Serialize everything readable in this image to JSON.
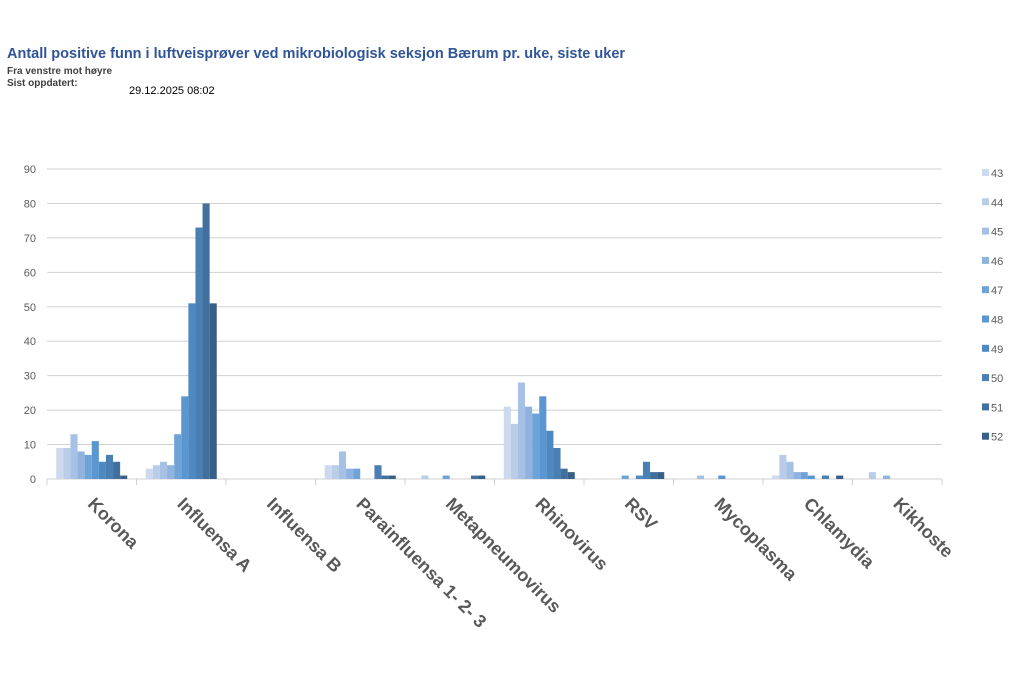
{
  "header": {
    "title": "Antall positive funn i luftveisprøver ved mikrobiologisk seksjon Bærum pr. uke, siste uker",
    "subtitle": "Fra venstre mot høyre",
    "updated_label": "Sist oppdatert:",
    "updated_value": "29.12.2025 08:02"
  },
  "chart_data": {
    "type": "bar",
    "title": "Antall positive funn i luftveisprøver ved mikrobiologisk seksjon Bærum pr. uke, siste uker",
    "xlabel": "",
    "ylabel": "",
    "ylim": [
      0,
      90
    ],
    "yticks": [
      "0",
      "10",
      "20",
      "30",
      "40",
      "50",
      "60",
      "70",
      "80",
      "90"
    ],
    "grid": true,
    "legend": "right",
    "categories": [
      "Korona",
      "Influensa A",
      "Influensa B",
      "Parainfluensa 1- 2- 3",
      "Metapneumovirus",
      "Rhinovirus",
      "RSV",
      "Mycoplasma",
      "Chlamydia",
      "Kikhoste"
    ],
    "series": [
      {
        "name": "43",
        "color": "#cdd9ec",
        "values": [
          9,
          3,
          0,
          4,
          0,
          21,
          0,
          0,
          1,
          0
        ]
      },
      {
        "name": "44",
        "color": "#b9cde9",
        "values": [
          9,
          4,
          0,
          4,
          1,
          16,
          0,
          0,
          7,
          2
        ]
      },
      {
        "name": "45",
        "color": "#a6c1e4",
        "values": [
          13,
          5,
          0,
          8,
          0,
          28,
          0,
          1,
          5,
          0
        ]
      },
      {
        "name": "46",
        "color": "#8fb2de",
        "values": [
          8,
          4,
          0,
          3,
          0,
          21,
          0,
          0,
          2,
          1
        ]
      },
      {
        "name": "47",
        "color": "#6ea3d8",
        "values": [
          7,
          13,
          0,
          3,
          1,
          19,
          1,
          0,
          2,
          0
        ]
      },
      {
        "name": "48",
        "color": "#5a96d0",
        "values": [
          11,
          24,
          0,
          0,
          0,
          24,
          0,
          1,
          1,
          0
        ]
      },
      {
        "name": "49",
        "color": "#4f89c2",
        "values": [
          5,
          51,
          0,
          0,
          0,
          14,
          1,
          0,
          0,
          0
        ]
      },
      {
        "name": "50",
        "color": "#4a7fb4",
        "values": [
          7,
          73,
          0,
          4,
          0,
          9,
          5,
          0,
          1,
          0
        ]
      },
      {
        "name": "51",
        "color": "#41709f",
        "values": [
          5,
          80,
          0,
          1,
          1,
          3,
          2,
          0,
          0,
          0
        ]
      },
      {
        "name": "52",
        "color": "#375f87",
        "values": [
          1,
          51,
          0,
          1,
          1,
          2,
          2,
          0,
          1,
          0
        ]
      }
    ]
  }
}
